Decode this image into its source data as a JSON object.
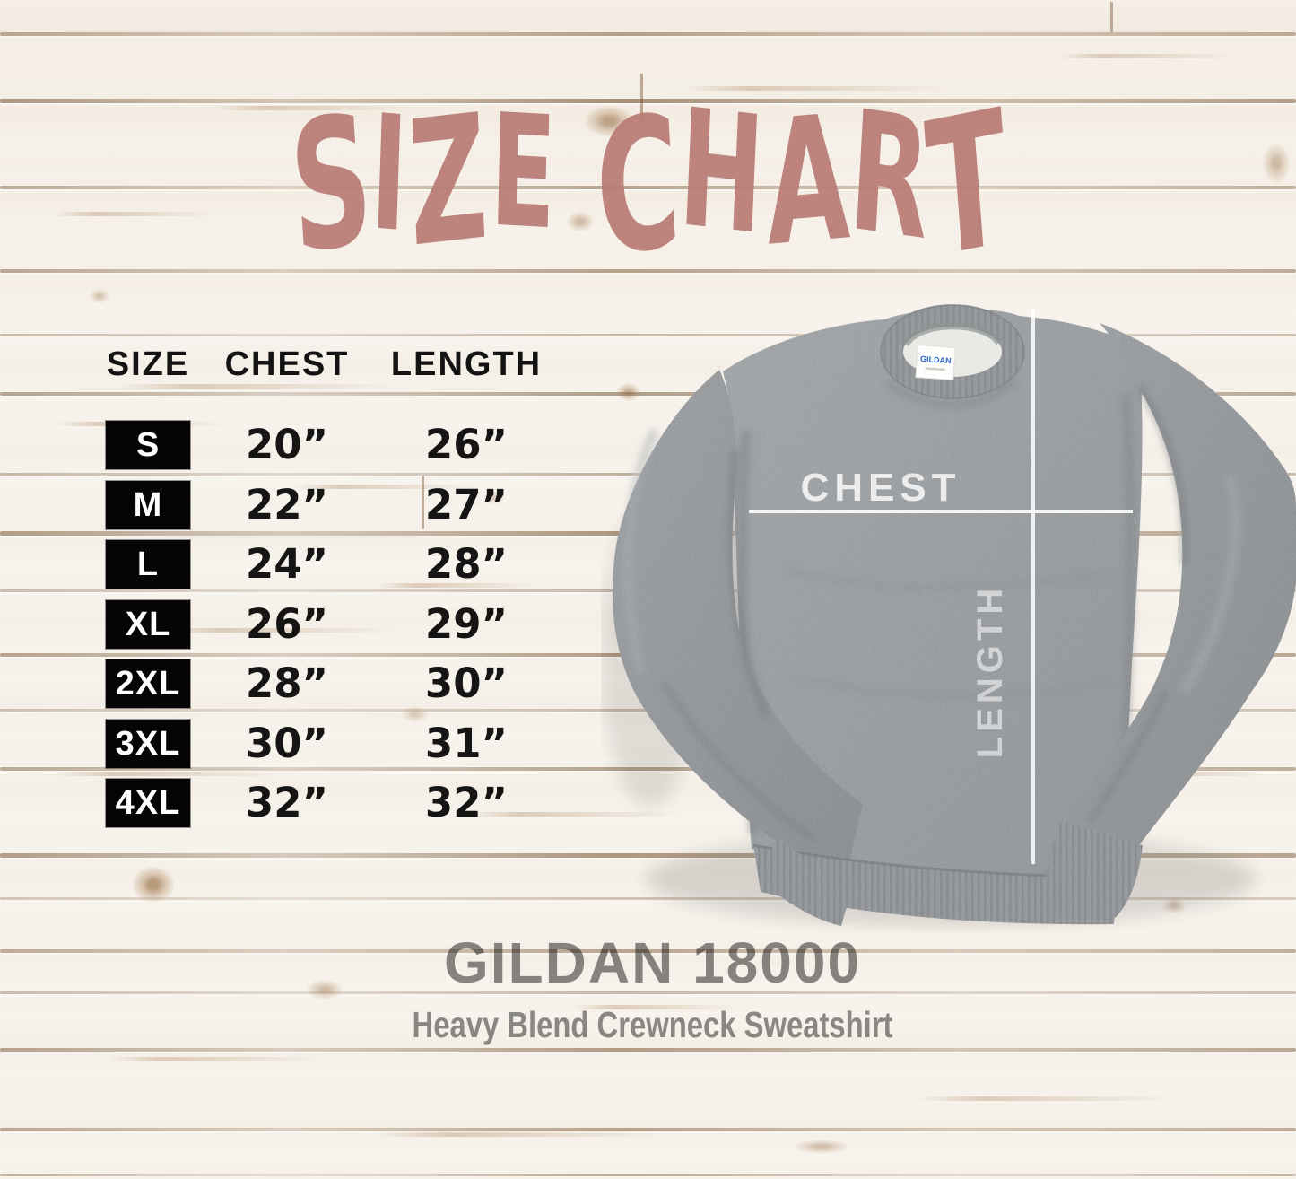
{
  "chart_data": {
    "type": "table",
    "title": "SIZE CHART",
    "columns": [
      "SIZE",
      "CHEST",
      "LENGTH"
    ],
    "rows": [
      [
        "S",
        "20”",
        "26”"
      ],
      [
        "M",
        "22”",
        "27”"
      ],
      [
        "L",
        "24”",
        "28”"
      ],
      [
        "XL",
        "26”",
        "29”"
      ],
      [
        "2XL",
        "28”",
        "30”"
      ],
      [
        "3XL",
        "30”",
        "31”"
      ],
      [
        "4XL",
        "32”",
        "32”"
      ]
    ]
  },
  "garment": {
    "chest_label": "CHEST",
    "length_label": "LENGTH",
    "tag_text": "GILDAN"
  },
  "product": {
    "name": "GILDAN 18000",
    "subtitle": "Heavy Blend Crewneck Sweatshirt"
  },
  "colors": {
    "title": "#b87b74",
    "table_text": "#141414",
    "badge_bg": "#050505",
    "badge_text": "#ffffff",
    "product_text": "#8a8a8a",
    "measure_line": "#ffffff",
    "sweatshirt_gray": "#b3b6b8",
    "wood_seam": "#7d5a38"
  }
}
